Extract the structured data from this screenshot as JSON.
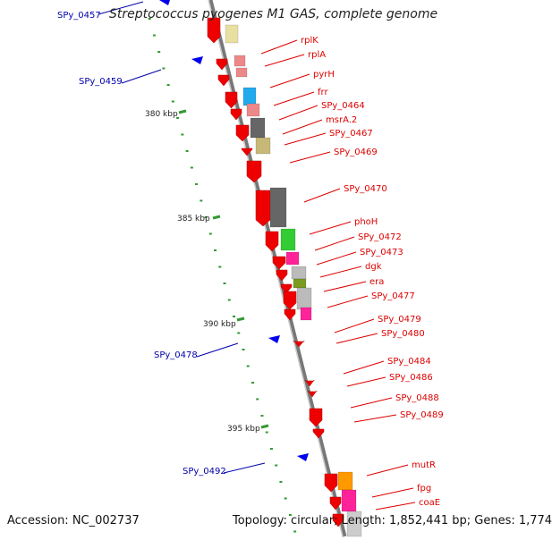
{
  "title": "Streptococcus pyogenes M1 GAS, complete genome",
  "footer": {
    "accession": "Accession: NC_002737",
    "summary": "Topology: circular; Length: 1,852,441 bp; Genes: 1,774"
  },
  "colors": {
    "label_red": "#dd0000",
    "label_blue": "#0000aa",
    "backbone": "#999999",
    "tick": "#339933",
    "gene_red": "#ee0000"
  },
  "kbp_labels": [
    "380 kbp",
    "385 kbp",
    "390 kbp",
    "395 kbp"
  ],
  "left_labels": [
    "SPy_0457",
    "SPy_0459",
    "SPy_0478",
    "SPy_0492"
  ],
  "right_labels": [
    "rplK",
    "rplA",
    "pyrH",
    "frr",
    "SPy_0464",
    "msrA.2",
    "SPy_0467",
    "SPy_0469",
    "SPy_0470",
    "phoH",
    "SPy_0472",
    "SPy_0473",
    "dgk",
    "era",
    "SPy_0477",
    "SPy_0479",
    "SPy_0480",
    "SPy_0484",
    "SPy_0486",
    "SPy_0488",
    "SPy_0489",
    "mutR",
    "fpg",
    "coaE"
  ]
}
